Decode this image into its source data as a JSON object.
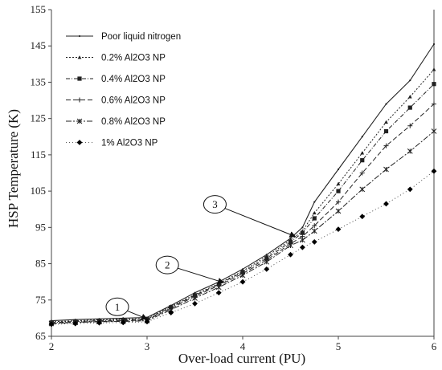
{
  "chart_data": {
    "type": "line",
    "xlabel": "Over-load current (PU)",
    "ylabel": "HSP Temperature (K)",
    "xlim": [
      2,
      6
    ],
    "ylim": [
      65,
      155
    ],
    "xticks": [
      2,
      3,
      4,
      5,
      6
    ],
    "yticks": [
      65,
      75,
      85,
      95,
      105,
      115,
      125,
      135,
      145,
      155
    ],
    "grid": false,
    "legend_position": "top-left",
    "x": [
      2.0,
      2.25,
      2.5,
      2.75,
      3.0,
      3.25,
      3.5,
      3.75,
      4.0,
      4.25,
      4.5,
      4.625,
      4.75,
      5.0,
      5.25,
      5.5,
      5.75,
      6.0
    ],
    "series": [
      {
        "name": "Poor liquid nitrogen",
        "marker": "line",
        "values": [
          69.3,
          69.6,
          69.8,
          70.0,
          70.2,
          73.5,
          77.0,
          80.0,
          83.5,
          87.5,
          92.0,
          95.0,
          102.0,
          111.0,
          120.0,
          129.0,
          135.5,
          145.5
        ]
      },
      {
        "name": "0.2% Al2O3 NP",
        "marker": "triangle",
        "values": [
          69.0,
          69.3,
          69.5,
          69.7,
          69.9,
          73.2,
          76.5,
          79.5,
          83.0,
          87.0,
          91.5,
          94.0,
          99.0,
          107.0,
          115.5,
          124.0,
          131.0,
          138.5
        ]
      },
      {
        "name": "0.4% Al2O3 NP",
        "marker": "square",
        "values": [
          68.8,
          69.1,
          69.3,
          69.5,
          69.7,
          73.0,
          76.3,
          79.3,
          82.7,
          86.5,
          91.0,
          93.5,
          97.5,
          105.0,
          113.5,
          121.5,
          128.0,
          134.5
        ]
      },
      {
        "name": "0.6% Al2O3 NP",
        "marker": "plus",
        "values": [
          68.6,
          68.9,
          69.1,
          69.3,
          69.5,
          72.7,
          76.0,
          79.0,
          82.3,
          86.0,
          90.5,
          92.5,
          95.5,
          102.0,
          110.0,
          117.5,
          123.0,
          129.0
        ]
      },
      {
        "name": "0.8% Al2O3 NP",
        "marker": "star",
        "values": [
          68.5,
          68.8,
          69.0,
          69.1,
          69.3,
          72.3,
          75.5,
          78.5,
          81.8,
          85.5,
          90.0,
          91.5,
          94.0,
          99.5,
          105.5,
          111.0,
          116.0,
          121.5
        ]
      },
      {
        "name": "1% Al2O3 NP",
        "marker": "diamond",
        "values": [
          68.3,
          68.5,
          68.7,
          68.8,
          69.0,
          71.5,
          74.0,
          77.0,
          80.0,
          83.5,
          87.5,
          89.5,
          91.0,
          94.5,
          98.0,
          101.5,
          105.5,
          110.5
        ]
      }
    ],
    "annotations": [
      {
        "label": "1",
        "point": [
          3.0,
          69.8
        ]
      },
      {
        "label": "2",
        "point": [
          3.8,
          79.8
        ]
      },
      {
        "label": "3",
        "point": [
          4.55,
          92.5
        ]
      }
    ]
  }
}
